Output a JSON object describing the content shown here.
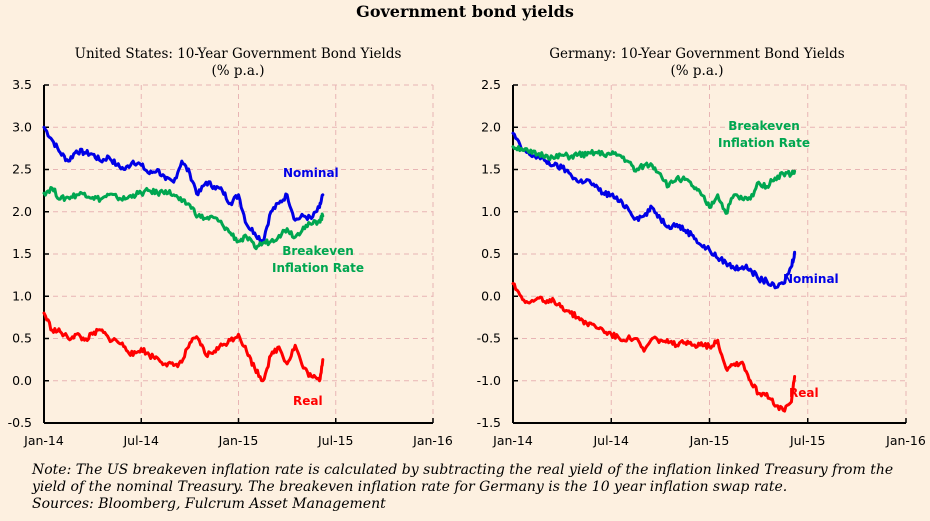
{
  "title": "Government bond yields",
  "note_lines": [
    "Note: The US breakeven inflation rate is calculated by subtracting the real yield of the inflation  linked  Treasury from the",
    "yield of the nominal Treasury. The breakeven inflation rate for Germany is the 10 year inflation  swap rate.",
    "Sources: Bloomberg, Fulcrum Asset Management"
  ],
  "colors": {
    "nominal": "#0000e6",
    "breakeven": "#00a650",
    "real": "#ff0000",
    "grid": "#e8b4b4",
    "background": "#fdf0e0"
  },
  "chart_data": [
    {
      "type": "line",
      "title": "United States: 10-Year Government Bond Yields",
      "subtitle": "(% p.a.)",
      "xlabel": "",
      "ylabel": "",
      "x_unit": "months since Jan-14",
      "xlim": [
        0,
        24
      ],
      "ylim": [
        -0.5,
        3.5
      ],
      "yticks": [
        "3.5",
        "3.0",
        "2.5",
        "2.0",
        "1.5",
        "1.0",
        "0.5",
        "0.0",
        "-0.5"
      ],
      "ytick_values": [
        3.5,
        3.0,
        2.5,
        2.0,
        1.5,
        1.0,
        0.5,
        0.0,
        -0.5
      ],
      "xticks": [
        "Jan-14",
        "Jul-14",
        "Jan-15",
        "Jul-15",
        "Jan-16"
      ],
      "xtick_values": [
        0,
        6,
        12,
        18,
        24
      ],
      "grid": true,
      "x": [
        0,
        0.5,
        1,
        1.5,
        2,
        2.5,
        3,
        3.5,
        4,
        4.5,
        5,
        5.5,
        6,
        6.5,
        7,
        7.5,
        8,
        8.5,
        9,
        9.5,
        10,
        10.5,
        11,
        11.5,
        12,
        12.5,
        13,
        13.5,
        14,
        14.5,
        15,
        15.5,
        16,
        16.5,
        17,
        17.2
      ],
      "series": [
        {
          "name": "Nominal",
          "label": "Nominal",
          "color_key": "nominal",
          "values": [
            3.0,
            2.85,
            2.7,
            2.6,
            2.72,
            2.7,
            2.68,
            2.6,
            2.65,
            2.55,
            2.5,
            2.6,
            2.55,
            2.45,
            2.5,
            2.38,
            2.35,
            2.6,
            2.45,
            2.2,
            2.35,
            2.3,
            2.25,
            2.1,
            2.2,
            1.85,
            1.75,
            1.65,
            2.0,
            2.1,
            2.2,
            1.9,
            1.95,
            1.92,
            2.05,
            2.2
          ]
        },
        {
          "name": "Breakeven Inflation Rate",
          "label": "Breakeven\nInflation Rate",
          "color_key": "breakeven",
          "values": [
            2.22,
            2.28,
            2.15,
            2.17,
            2.2,
            2.22,
            2.17,
            2.15,
            2.2,
            2.17,
            2.15,
            2.2,
            2.22,
            2.25,
            2.22,
            2.25,
            2.2,
            2.12,
            2.08,
            1.95,
            1.92,
            1.93,
            1.85,
            1.75,
            1.65,
            1.7,
            1.58,
            1.63,
            1.65,
            1.72,
            1.8,
            1.7,
            1.82,
            1.85,
            1.9,
            1.95
          ]
        },
        {
          "name": "Real",
          "label": "Real",
          "color_key": "real",
          "values": [
            0.8,
            0.6,
            0.58,
            0.5,
            0.55,
            0.48,
            0.55,
            0.6,
            0.5,
            0.47,
            0.4,
            0.3,
            0.38,
            0.3,
            0.27,
            0.2,
            0.18,
            0.22,
            0.45,
            0.5,
            0.3,
            0.35,
            0.42,
            0.48,
            0.55,
            0.35,
            0.15,
            0.0,
            0.3,
            0.4,
            0.2,
            0.42,
            0.15,
            0.05,
            0.0,
            0.25
          ]
        }
      ]
    },
    {
      "type": "line",
      "title": "Germany: 10-Year Government Bond Yields",
      "subtitle": "(% p.a.)",
      "xlabel": "",
      "ylabel": "",
      "x_unit": "months since Jan-14",
      "xlim": [
        0,
        24
      ],
      "ylim": [
        -1.5,
        2.5
      ],
      "yticks": [
        "2.5",
        "2.0",
        "1.5",
        "1.0",
        "0.5",
        "0.0",
        "-0.5",
        "-1.0",
        "-1.5"
      ],
      "ytick_values": [
        2.5,
        2.0,
        1.5,
        1.0,
        0.5,
        0.0,
        -0.5,
        -1.0,
        -1.5
      ],
      "xticks": [
        "Jan-14",
        "Jul-14",
        "Jan-15",
        "Jul-15",
        "Jan-16"
      ],
      "xtick_values": [
        0,
        6,
        12,
        18,
        24
      ],
      "grid": true,
      "x": [
        0,
        0.5,
        1,
        1.5,
        2,
        2.5,
        3,
        3.5,
        4,
        4.5,
        5,
        5.5,
        6,
        6.5,
        7,
        7.5,
        8,
        8.5,
        9,
        9.5,
        10,
        10.5,
        11,
        11.5,
        12,
        12.5,
        13,
        13.5,
        14,
        14.5,
        15,
        15.5,
        16,
        16.5,
        17,
        17.2
      ],
      "series": [
        {
          "name": "Nominal",
          "label": "Nominal",
          "color_key": "nominal",
          "values": [
            1.93,
            1.75,
            1.68,
            1.65,
            1.6,
            1.55,
            1.52,
            1.45,
            1.35,
            1.38,
            1.3,
            1.22,
            1.2,
            1.12,
            1.05,
            0.92,
            0.95,
            1.05,
            0.92,
            0.83,
            0.85,
            0.78,
            0.72,
            0.6,
            0.55,
            0.45,
            0.4,
            0.33,
            0.35,
            0.32,
            0.2,
            0.18,
            0.1,
            0.15,
            0.35,
            0.52
          ]
        },
        {
          "name": "Breakeven Inflation Rate",
          "label": "Breakeven\nInflation Rate",
          "color_key": "breakeven",
          "values": [
            1.77,
            1.75,
            1.7,
            1.68,
            1.67,
            1.63,
            1.67,
            1.65,
            1.68,
            1.67,
            1.7,
            1.68,
            1.68,
            1.67,
            1.6,
            1.48,
            1.55,
            1.55,
            1.45,
            1.3,
            1.4,
            1.38,
            1.3,
            1.2,
            1.05,
            1.2,
            0.98,
            1.2,
            1.15,
            1.15,
            1.35,
            1.3,
            1.4,
            1.45,
            1.45,
            1.48
          ]
        },
        {
          "name": "Real",
          "label": "Real",
          "color_key": "real",
          "values": [
            0.15,
            0.0,
            -0.08,
            -0.02,
            -0.08,
            -0.05,
            -0.12,
            -0.2,
            -0.25,
            -0.32,
            -0.35,
            -0.4,
            -0.45,
            -0.5,
            -0.5,
            -0.5,
            -0.65,
            -0.5,
            -0.52,
            -0.55,
            -0.58,
            -0.55,
            -0.58,
            -0.55,
            -0.6,
            -0.52,
            -0.85,
            -0.8,
            -0.78,
            -1.0,
            -1.15,
            -1.15,
            -1.3,
            -1.35,
            -1.25,
            -0.95
          ]
        }
      ]
    }
  ]
}
